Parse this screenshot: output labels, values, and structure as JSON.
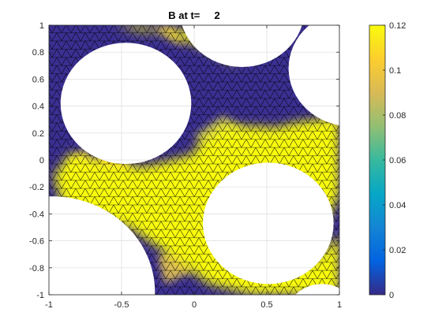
{
  "chart_data": {
    "type": "heatmap",
    "title": "B at t=     2",
    "xlim": [
      -1,
      1
    ],
    "ylim": [
      -1,
      1
    ],
    "x_ticks": [
      "-1",
      "-0.5",
      "0",
      "0.5",
      "1"
    ],
    "y_ticks": [
      "1",
      "0.8",
      "0.6",
      "0.4",
      "0.2",
      "0",
      "-0.2",
      "-0.4",
      "-0.6",
      "-0.8",
      "-1"
    ],
    "grid": true,
    "colorbar": {
      "range": [
        0,
        0.12
      ],
      "ticks": [
        "0",
        "0.02",
        "0.04",
        "0.06",
        "0.08",
        "0.1",
        "0.12"
      ],
      "colormap": "parula",
      "placement": "right"
    },
    "holes": [
      {
        "cx": -0.47,
        "cy": 0.42,
        "r": 0.45
      },
      {
        "cx": 0.51,
        "cy": -0.47,
        "r": 0.45
      },
      {
        "cx": -0.98,
        "cy": -0.98,
        "r": 0.71
      },
      {
        "cx": 0.33,
        "cy": 1.12,
        "r": 0.43
      },
      {
        "cx": 1.08,
        "cy": 0.68,
        "r": 0.43
      },
      {
        "cx": 0.88,
        "cy": -1.17,
        "r": 0.25
      }
    ],
    "high_regions": [
      {
        "x": [
          -0.97,
          -0.9,
          -0.7,
          -0.45,
          -0.15,
          0.1,
          0.4,
          0.7,
          1.0,
          1.0,
          0.7,
          0.5,
          0.3,
          0.15,
          0.0,
          -0.15,
          -0.35,
          -0.6,
          -0.85
        ],
        "y": [
          -0.12,
          -0.35,
          -0.42,
          -0.5,
          -0.72,
          -0.92,
          -1.0,
          -1.0,
          -0.25,
          0.32,
          0.28,
          0.22,
          0.2,
          0.18,
          0.05,
          0.0,
          -0.05,
          -0.02,
          0.05
        ],
        "value": 0.12
      },
      {
        "x": [
          -0.55,
          -0.4,
          -0.15,
          0.1,
          0.3,
          0.1,
          -0.2,
          -0.35
        ],
        "y": [
          1.0,
          1.0,
          0.95,
          1.0,
          0.7,
          0.82,
          0.95,
          0.95
        ],
        "value": 0.12
      },
      {
        "x": [
          0.0,
          0.2,
          0.45,
          0.75,
          1.0,
          1.0,
          0.6,
          0.3,
          0.1
        ],
        "y": [
          0.1,
          0.25,
          0.25,
          0.22,
          0.3,
          0.05,
          0.0,
          0.05,
          0.0
        ],
        "value": 0.12
      },
      {
        "x": [
          0.62,
          0.8,
          1.0,
          1.0,
          0.8,
          0.6
        ],
        "y": [
          -1.0,
          -0.78,
          -0.55,
          -1.0,
          -1.0,
          -1.0
        ],
        "value": 0.12
      }
    ],
    "mid_regions": [
      {
        "x": [
          -0.87,
          -0.75,
          -0.65,
          -0.78
        ],
        "y": [
          0.0,
          0.08,
          -0.18,
          -0.3
        ],
        "value": 0.09
      },
      {
        "x": [
          0.0,
          0.2,
          0.35,
          0.1
        ],
        "y": [
          0.18,
          0.33,
          0.23,
          0.08
        ],
        "value": 0.085
      },
      {
        "x": [
          -0.28,
          -0.15,
          -0.05,
          -0.15
        ],
        "y": [
          0.98,
          1.0,
          0.85,
          0.88
        ],
        "value": 0.09
      },
      {
        "x": [
          -0.25,
          -0.1,
          0.0,
          -0.2
        ],
        "y": [
          -0.72,
          -0.62,
          -0.82,
          -0.92
        ],
        "value": 0.09
      },
      {
        "x": [
          -0.72,
          -0.55,
          -0.42,
          -0.55
        ],
        "y": [
          -0.02,
          0.06,
          -0.08,
          -0.12
        ],
        "value": 0.1
      }
    ]
  }
}
